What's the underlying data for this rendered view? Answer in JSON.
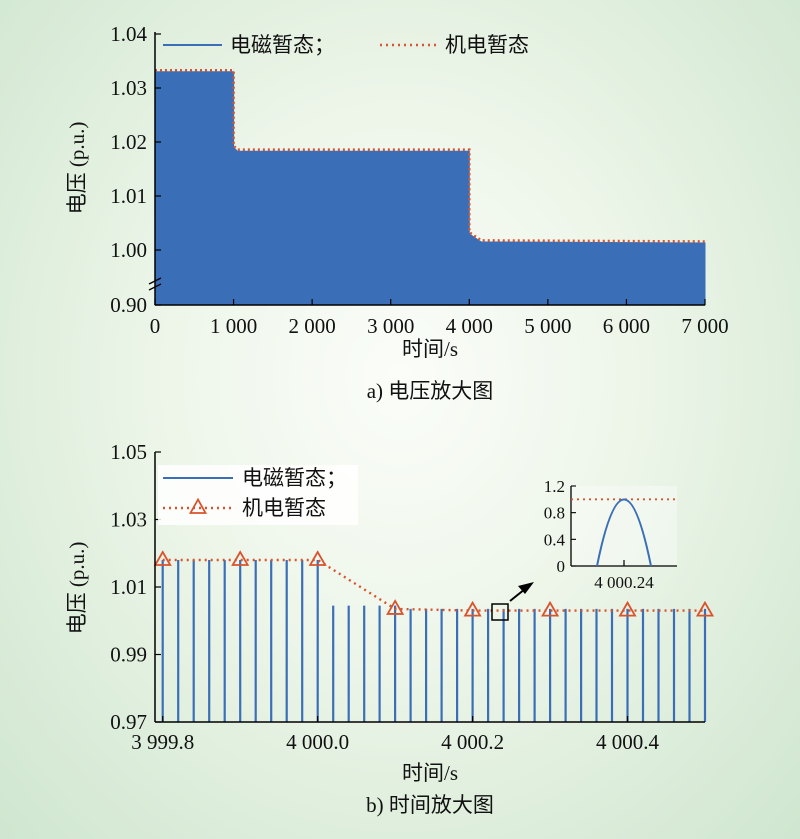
{
  "chart_data": [
    {
      "id": "a",
      "type": "area",
      "caption": "a) 电压放大图",
      "xlabel": "时间/s",
      "ylabel": "电压 (p.u.)",
      "xlim": [
        0,
        7000
      ],
      "x_ticks": [
        0,
        1000,
        2000,
        3000,
        4000,
        5000,
        6000,
        7000
      ],
      "x_tick_labels": [
        "0",
        "1 000",
        "2 000",
        "3 000",
        "4 000",
        "5 000",
        "6 000",
        "7 000"
      ],
      "y_ticks": [
        0.9,
        1.0,
        1.01,
        1.02,
        1.03,
        1.04
      ],
      "y_tick_labels": [
        "0.90",
        "1.00",
        "1.01",
        "1.02",
        "1.03",
        "1.04"
      ],
      "y_axis_break": true,
      "legend": {
        "placement": "top",
        "entries": [
          "电磁暂态；",
          "机电暂态"
        ]
      },
      "series": [
        {
          "name": "电磁暂态",
          "style": "solid-filled",
          "color": "#3a6fb8",
          "x": [
            0,
            1000,
            1000,
            1050,
            4000,
            4000,
            4150,
            7000
          ],
          "y": [
            1.033,
            1.033,
            1.019,
            1.0183,
            1.0183,
            1.003,
            1.0015,
            1.0013
          ]
        },
        {
          "name": "机电暂态",
          "style": "dotted",
          "color": "#d9532c",
          "x": [
            0,
            1000,
            1000,
            1050,
            4000,
            4000,
            4150,
            7000
          ],
          "y": [
            1.033,
            1.033,
            1.019,
            1.0183,
            1.0183,
            1.003,
            1.0015,
            1.0013
          ]
        }
      ]
    },
    {
      "id": "b",
      "type": "line",
      "caption": "b) 时间放大图",
      "xlabel": "时间/s",
      "ylabel": "电压 (p.u.)",
      "xlim": [
        3999.79,
        4000.5
      ],
      "ylim": [
        0.97,
        1.05
      ],
      "x_ticks": [
        3999.8,
        4000.0,
        4000.2,
        4000.4
      ],
      "x_tick_labels": [
        "3 999.8",
        "4 000.0",
        "4 000.2",
        "4 000.4"
      ],
      "y_ticks": [
        0.97,
        0.99,
        1.01,
        1.03,
        1.05
      ],
      "y_tick_labels": [
        "0.97",
        "0.99",
        "1.01",
        "1.03",
        "1.05"
      ],
      "legend": {
        "placement": "top-left",
        "entries": [
          "电磁暂态；",
          "机电暂态"
        ]
      },
      "series": [
        {
          "name": "电磁暂态",
          "style": "solid-spikes",
          "color": "#3a6fb8",
          "period": 0.02,
          "first_peak": 3999.8,
          "peaks_x": [
            3999.8,
            4000.0,
            4000.1,
            4000.5
          ],
          "peaks_y": [
            1.018,
            1.018,
            1.0045,
            1.0035
          ]
        },
        {
          "name": "机电暂态",
          "style": "dotted-triangle",
          "color": "#d9532c",
          "x": [
            3999.8,
            3999.9,
            4000.0,
            4000.1,
            4000.2,
            4000.3,
            4000.4,
            4000.5
          ],
          "y": [
            1.018,
            1.018,
            1.018,
            1.0035,
            1.003,
            1.003,
            1.003,
            1.003
          ]
        }
      ],
      "inset": {
        "x_ticks": [
          4000.24
        ],
        "x_tick_labels": [
          "4 000.24"
        ],
        "y_ticks": [
          0,
          0.4,
          0.8,
          1.2
        ],
        "y_tick_labels": [
          "0",
          "0.4",
          "0.8",
          "1.2"
        ],
        "ylim": [
          0,
          1.2
        ],
        "reference_level": 1.0
      }
    }
  ]
}
